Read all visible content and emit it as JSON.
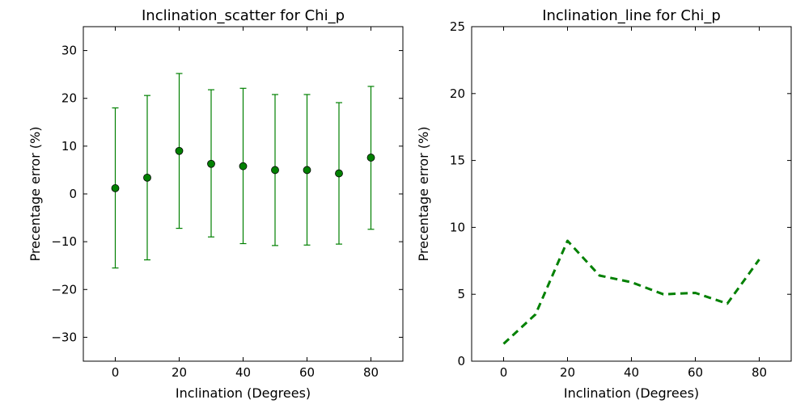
{
  "chart_data": [
    {
      "type": "scatter",
      "title": "Inclination_scatter for Chi_p",
      "xlabel": "Inclination (Degrees)",
      "ylabel": "Precentage error (%)",
      "xlim": [
        -10,
        90
      ],
      "ylim": [
        -35,
        35
      ],
      "xticks": [
        0,
        20,
        40,
        60,
        80
      ],
      "yticks": [
        -30,
        -20,
        -10,
        0,
        10,
        20,
        30
      ],
      "grid": false,
      "color": "#008000",
      "x": [
        0,
        10,
        20,
        30,
        40,
        50,
        60,
        70,
        80
      ],
      "y": [
        1.2,
        3.4,
        9.0,
        6.3,
        5.8,
        5.0,
        5.0,
        4.3,
        7.6
      ],
      "err_low": [
        -15.5,
        -13.8,
        -7.2,
        -9.0,
        -10.4,
        -10.8,
        -10.7,
        -10.5,
        -7.4
      ],
      "err_high": [
        18.0,
        20.6,
        25.2,
        21.8,
        22.1,
        20.8,
        20.8,
        19.1,
        22.5
      ]
    },
    {
      "type": "line",
      "title": "Inclination_line for Chi_p",
      "xlabel": "Inclination (Degrees)",
      "ylabel": "Precentage error (%)",
      "xlim": [
        -10,
        90
      ],
      "ylim": [
        0,
        25
      ],
      "xticks": [
        0,
        20,
        40,
        60,
        80
      ],
      "yticks": [
        0,
        5,
        10,
        15,
        20,
        25
      ],
      "grid": false,
      "color": "#008000",
      "line_style": "dashed",
      "x": [
        0,
        10,
        20,
        30,
        40,
        50,
        60,
        70,
        80
      ],
      "y": [
        1.3,
        3.5,
        9.0,
        6.4,
        5.9,
        5.0,
        5.1,
        4.3,
        7.6
      ]
    }
  ]
}
